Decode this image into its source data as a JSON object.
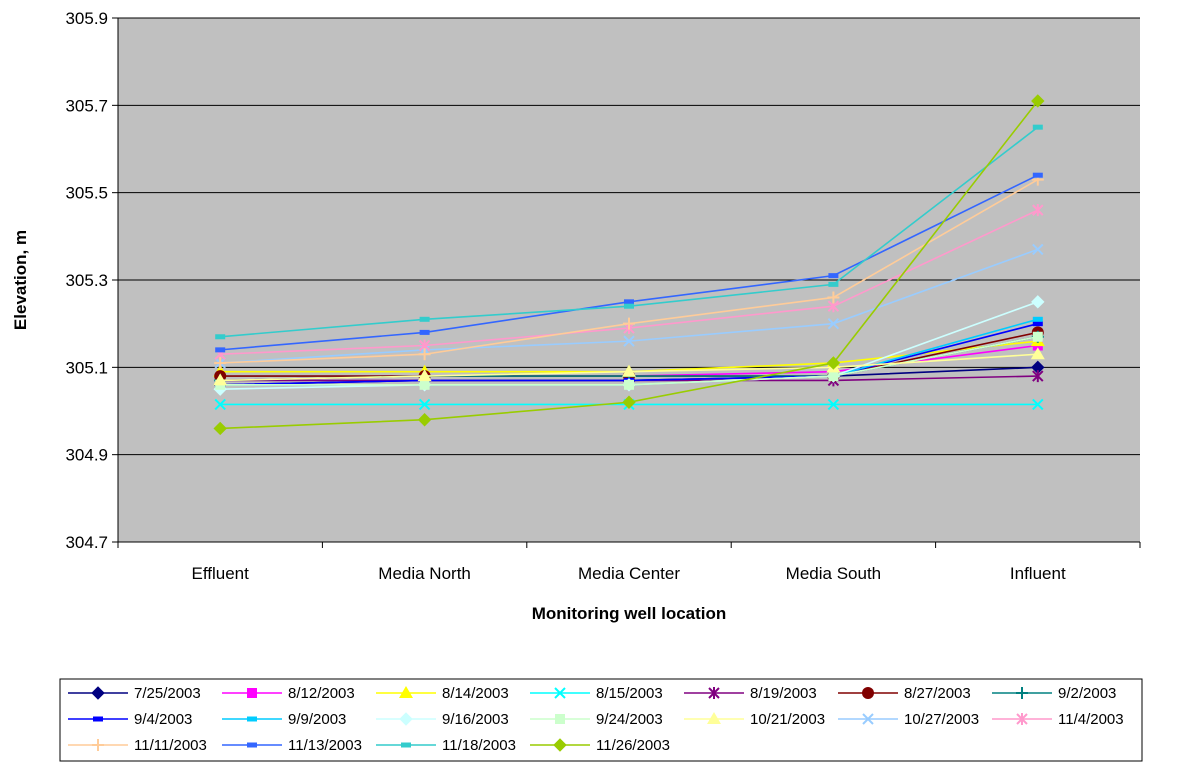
{
  "chart_data": {
    "type": "line",
    "title": "",
    "xlabel": "Monitoring well location",
    "ylabel": "Elevation, m",
    "categories": [
      "Effluent",
      "Media North",
      "Media Center",
      "Media South",
      "Influent"
    ],
    "ylim": [
      304.7,
      305.9
    ],
    "yticks": [
      "304.7",
      "304.9",
      "305.1",
      "305.3",
      "305.5",
      "305.7",
      "305.9"
    ],
    "grid": true,
    "legend_position": "bottom",
    "plot_background": "#C0C0C0",
    "series": [
      {
        "name": "7/25/2003",
        "color": "#000080",
        "marker": "diamond",
        "values": [
          305.06,
          305.07,
          305.07,
          305.08,
          305.1
        ]
      },
      {
        "name": "8/12/2003",
        "color": "#FF00FF",
        "marker": "square",
        "values": [
          305.07,
          305.08,
          305.08,
          305.09,
          305.15
        ]
      },
      {
        "name": "8/14/2003",
        "color": "#FFFF00",
        "marker": "triangle",
        "values": [
          305.09,
          305.09,
          305.09,
          305.11,
          305.16
        ]
      },
      {
        "name": "8/15/2003",
        "color": "#00FFFF",
        "marker": "x",
        "values": [
          305.015,
          305.015,
          305.015,
          305.015,
          305.015
        ]
      },
      {
        "name": "8/19/2003",
        "color": "#800080",
        "marker": "star",
        "values": [
          305.07,
          305.07,
          305.07,
          305.07,
          305.08
        ]
      },
      {
        "name": "8/27/2003",
        "color": "#800000",
        "marker": "circle",
        "values": [
          305.08,
          305.08,
          305.08,
          305.08,
          305.18
        ]
      },
      {
        "name": "9/2/2003",
        "color": "#008080",
        "marker": "plus",
        "values": [
          305.07,
          305.08,
          305.08,
          305.08,
          305.17
        ]
      },
      {
        "name": "9/4/2003",
        "color": "#0000FF",
        "marker": "dash",
        "values": [
          305.06,
          305.07,
          305.07,
          305.08,
          305.2
        ]
      },
      {
        "name": "9/9/2003",
        "color": "#00CCFF",
        "marker": "dash",
        "values": [
          305.06,
          305.06,
          305.06,
          305.08,
          305.21
        ]
      },
      {
        "name": "9/16/2003",
        "color": "#CCFFFF",
        "marker": "diamond",
        "values": [
          305.05,
          305.06,
          305.06,
          305.08,
          305.25
        ]
      },
      {
        "name": "9/24/2003",
        "color": "#CCFFCC",
        "marker": "square",
        "values": [
          305.06,
          305.06,
          305.06,
          305.08,
          305.17
        ]
      },
      {
        "name": "10/21/2003",
        "color": "#FFFF99",
        "marker": "triangle",
        "values": [
          305.07,
          305.08,
          305.09,
          305.1,
          305.13
        ]
      },
      {
        "name": "10/27/2003",
        "color": "#99CCFF",
        "marker": "x",
        "values": [
          305.11,
          305.14,
          305.16,
          305.2,
          305.37
        ]
      },
      {
        "name": "11/4/2003",
        "color": "#FF99CC",
        "marker": "star",
        "values": [
          305.13,
          305.15,
          305.19,
          305.24,
          305.46
        ]
      },
      {
        "name": "11/11/2003",
        "color": "#FFCC99",
        "marker": "plus",
        "values": [
          305.11,
          305.13,
          305.2,
          305.26,
          305.53
        ]
      },
      {
        "name": "11/13/2003",
        "color": "#3366FF",
        "marker": "dash",
        "values": [
          305.14,
          305.18,
          305.25,
          305.31,
          305.54
        ]
      },
      {
        "name": "11/18/2003",
        "color": "#33CCCC",
        "marker": "dash",
        "values": [
          305.17,
          305.21,
          305.24,
          305.29,
          305.65
        ]
      },
      {
        "name": "11/26/2003",
        "color": "#99CC00",
        "marker": "diamond",
        "values": [
          304.96,
          304.98,
          305.02,
          305.11,
          305.71
        ]
      }
    ]
  }
}
